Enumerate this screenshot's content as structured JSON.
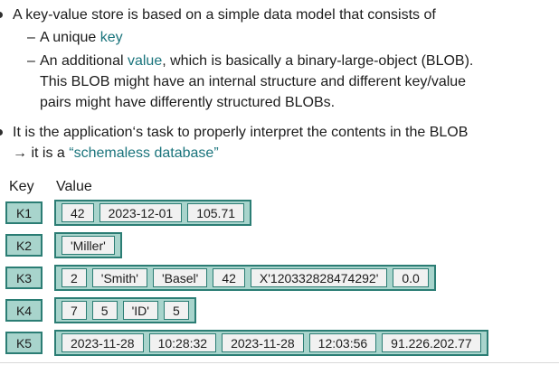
{
  "colors": {
    "teal_text": "#1a747c",
    "box_fill": "#a8d4cc",
    "box_border": "#2b7d74",
    "value_fill": "#f1f1f1"
  },
  "content": {
    "bullet1": {
      "text": "A key-value store is based on a simple data model that consists of",
      "sub1": {
        "dash": "–",
        "pre": "A unique ",
        "highlight": "key"
      },
      "sub2": {
        "dash": "–",
        "line1_pre": "An additional ",
        "line1_highlight": "value",
        "line1_post": ", which is basically a binary-large-object (BLOB).",
        "line2": "This BLOB might have an internal structure and different key/value",
        "line3": "pairs might have differently structured BLOBs."
      }
    },
    "bullet2": {
      "line1": "It is the application‘s task to properly interpret the contents in the BLOB",
      "line2_pre": "→ it is a ",
      "line2_highlight": "“schemaless database”"
    }
  },
  "table": {
    "key_header": "Key",
    "value_header": "Value",
    "rows": [
      {
        "key": "K1",
        "values": [
          "42",
          "2023-12-01",
          "105.71"
        ]
      },
      {
        "key": "K2",
        "values": [
          "'Miller'"
        ]
      },
      {
        "key": "K3",
        "values": [
          "2",
          "'Smith'",
          "'Basel'",
          "42",
          "X'120332828474292'",
          "0.0"
        ]
      },
      {
        "key": "K4",
        "values": [
          "7",
          "5",
          "'ID'",
          "5"
        ]
      },
      {
        "key": "K5",
        "values": [
          "2023-11-28",
          "10:28:32",
          "2023-11-28",
          "12:03:56",
          "91.226.202.77"
        ]
      }
    ]
  }
}
